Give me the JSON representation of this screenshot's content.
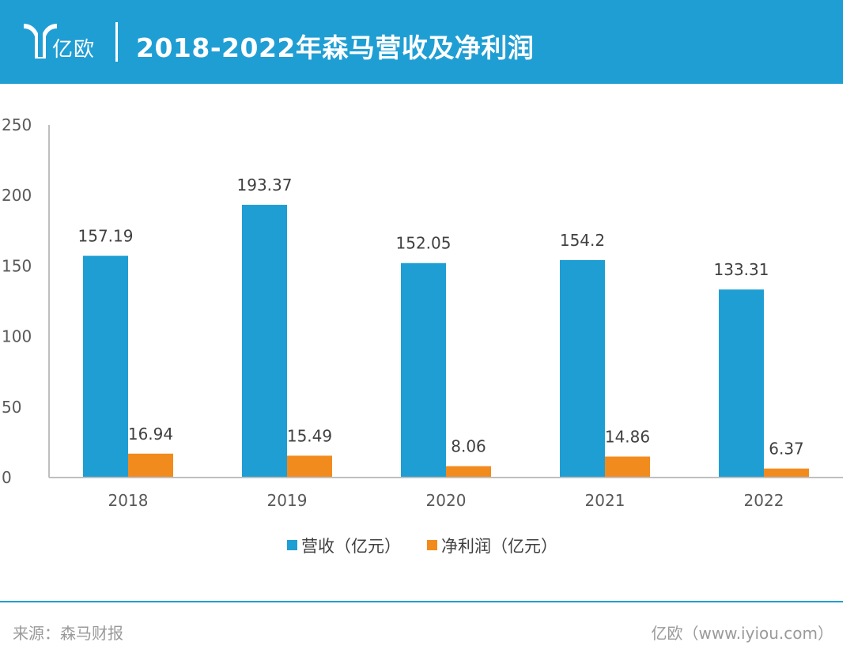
{
  "header": {
    "brand": "亿欧",
    "title": "2018-2022年森马营收及净利润"
  },
  "colors": {
    "accent": "#1f9ed4",
    "revenue": "#1f9ed4",
    "profit": "#f28b1e"
  },
  "chart_data": {
    "type": "bar",
    "title": "2018-2022年森马营收及净利润",
    "categories": [
      "2018",
      "2019",
      "2020",
      "2021",
      "2022"
    ],
    "series": [
      {
        "name": "营收（亿元）",
        "values": [
          157.19,
          193.37,
          152.05,
          154.2,
          133.31
        ],
        "labels": [
          "157.19",
          "193.37",
          "152.05",
          "154.2",
          "133.31"
        ]
      },
      {
        "name": "净利润（亿元）",
        "values": [
          16.94,
          15.49,
          8.06,
          14.86,
          6.37
        ],
        "labels": [
          "16.94",
          "15.49",
          "8.06",
          "14.86",
          "6.37"
        ]
      }
    ],
    "ylim": [
      0,
      250
    ],
    "yticks": [
      0,
      50,
      100,
      150,
      200,
      250
    ],
    "xlabel": "",
    "ylabel": "",
    "legend_position": "bottom",
    "grid": false
  },
  "footer": {
    "source": "来源：森马财报",
    "credit": "亿欧（www.iyiou.com）"
  }
}
